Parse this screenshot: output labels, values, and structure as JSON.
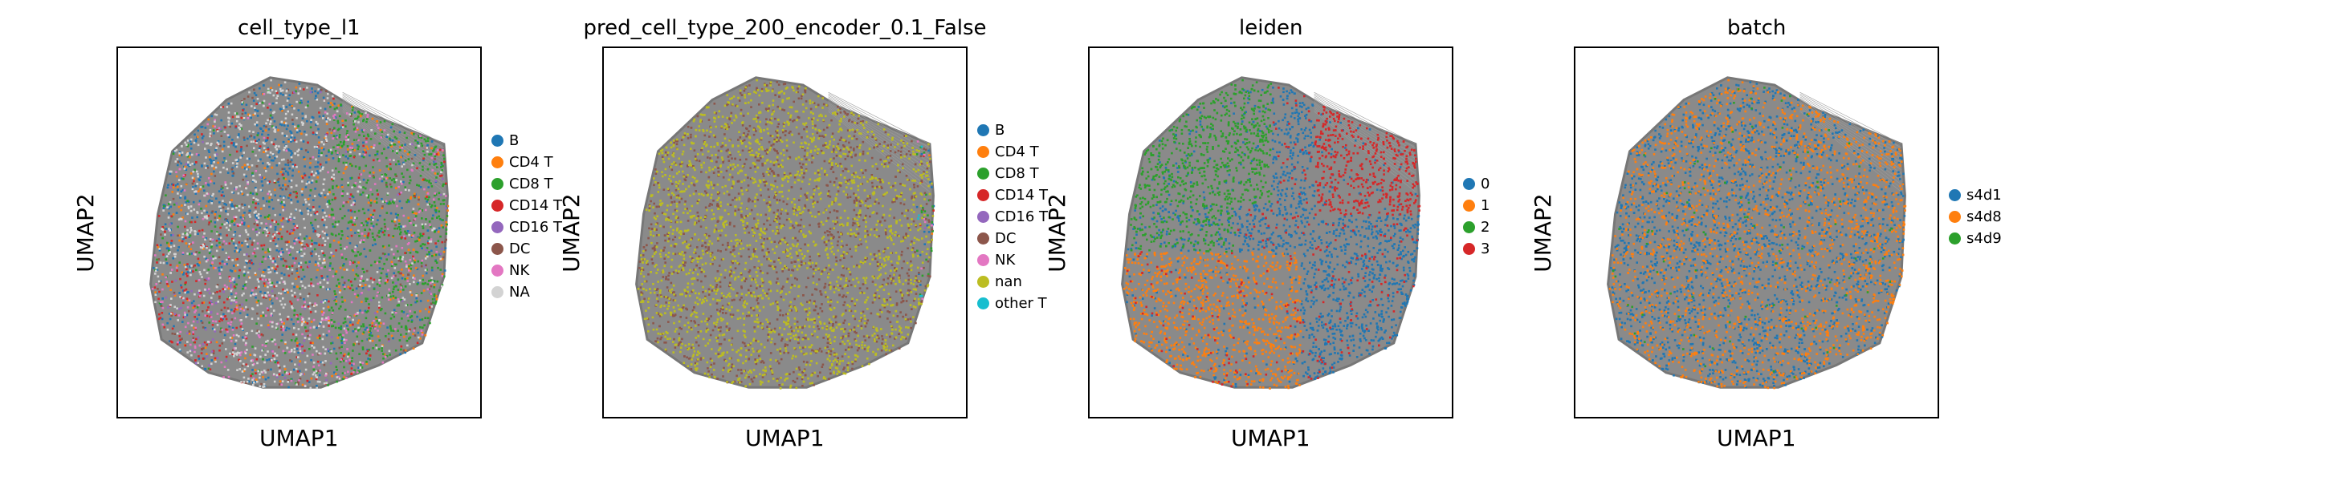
{
  "chart_data": [
    {
      "type": "scatter",
      "title": "cell_type_l1",
      "xlabel": "UMAP1",
      "ylabel": "UMAP2",
      "legend_position": "right",
      "legend": [
        {
          "label": "B",
          "color": "#1f77b4"
        },
        {
          "label": "CD4 T",
          "color": "#ff7f0e"
        },
        {
          "label": "CD8 T",
          "color": "#2ca02c"
        },
        {
          "label": "CD14 T",
          "color": "#d62728"
        },
        {
          "label": "CD16 T",
          "color": "#9467bd"
        },
        {
          "label": "DC",
          "color": "#8c564b"
        },
        {
          "label": "NK",
          "color": "#e377c2"
        },
        {
          "label": "NA",
          "color": "#d3d3d3"
        }
      ]
    },
    {
      "type": "scatter",
      "title": "pred_cell_type_200_encoder_0.1_False",
      "xlabel": "UMAP1",
      "ylabel": "UMAP2",
      "legend_position": "right",
      "legend": [
        {
          "label": "B",
          "color": "#1f77b4"
        },
        {
          "label": "CD4 T",
          "color": "#ff7f0e"
        },
        {
          "label": "CD8 T",
          "color": "#2ca02c"
        },
        {
          "label": "CD14 T",
          "color": "#d62728"
        },
        {
          "label": "CD16 T",
          "color": "#9467bd"
        },
        {
          "label": "DC",
          "color": "#8c564b"
        },
        {
          "label": "NK",
          "color": "#e377c2"
        },
        {
          "label": "nan",
          "color": "#bcbd22"
        },
        {
          "label": "other T",
          "color": "#17becf"
        }
      ]
    },
    {
      "type": "scatter",
      "title": "leiden",
      "xlabel": "UMAP1",
      "ylabel": "UMAP2",
      "legend_position": "right",
      "legend": [
        {
          "label": "0",
          "color": "#1f77b4"
        },
        {
          "label": "1",
          "color": "#ff7f0e"
        },
        {
          "label": "2",
          "color": "#2ca02c"
        },
        {
          "label": "3",
          "color": "#d62728"
        }
      ]
    },
    {
      "type": "scatter",
      "title": "batch",
      "xlabel": "UMAP1",
      "ylabel": "UMAP2",
      "legend_position": "right",
      "legend": [
        {
          "label": "s4d1",
          "color": "#1f77b4"
        },
        {
          "label": "s4d8",
          "color": "#ff7f0e"
        },
        {
          "label": "s4d9",
          "color": "#2ca02c"
        }
      ]
    }
  ]
}
